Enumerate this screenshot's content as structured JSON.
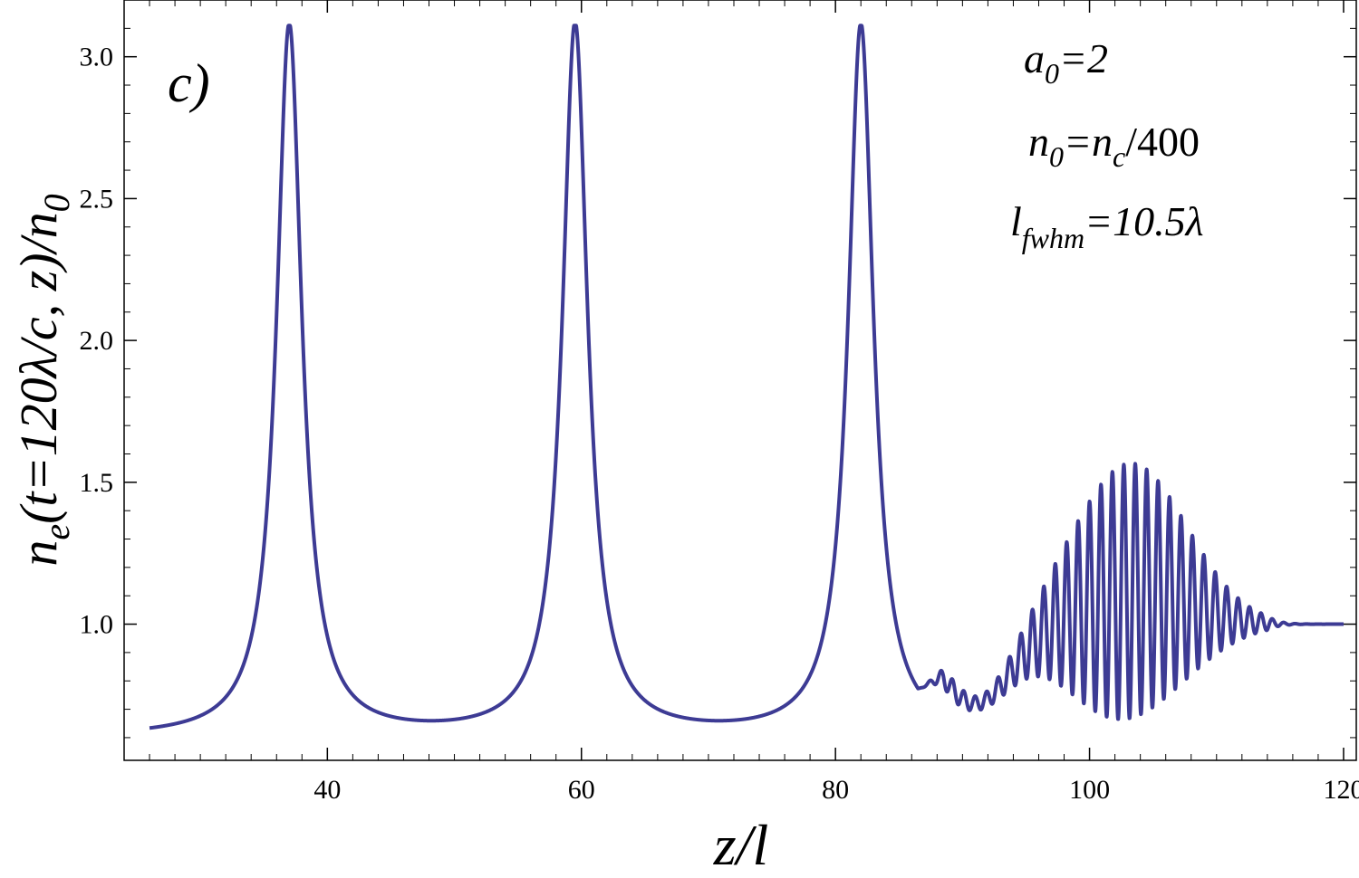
{
  "chart_data": {
    "type": "line",
    "panel_label": "c)",
    "xlabel": {
      "main": "z/l"
    },
    "ylabel": {
      "prefix": "n",
      "prefix_sub": "e",
      "middle": "(t=120λ/c, z)/n",
      "suffix_sub": "0"
    },
    "xlim": [
      24,
      121
    ],
    "ylim": [
      0.52,
      3.2
    ],
    "xticks": [
      40,
      60,
      80,
      100,
      120
    ],
    "xtick_labels": [
      "40",
      "60",
      "80",
      "100",
      "120"
    ],
    "yticks": [
      1.0,
      1.5,
      2.0,
      2.5,
      3.0
    ],
    "ytick_labels": [
      "1.0",
      "1.5",
      "2.0",
      "2.5",
      "3.0"
    ],
    "x_minor_step": 2,
    "y_minor_step": 0.1,
    "annotations": [
      {
        "base": "a",
        "sub": "0",
        "rest": "=2"
      },
      {
        "base": "n",
        "sub": "0",
        "rest": "=n",
        "sub2": "c",
        "rest2": "/400"
      },
      {
        "base": "l",
        "sub": "fwhm",
        "rest": "=10.5λ"
      }
    ],
    "series": [
      {
        "color": "#3d3b94",
        "peaks": [
          {
            "x": 37.0,
            "y": 3.11
          },
          {
            "x": 59.5,
            "y": 3.11
          },
          {
            "x": 82.0,
            "y": 3.11
          }
        ],
        "minimum_y": 0.6,
        "x": [
          26,
          28,
          30,
          32,
          34,
          35,
          36,
          36.5,
          37,
          37.5,
          38,
          39,
          40,
          42,
          44,
          46,
          48,
          50,
          52,
          54,
          56,
          57,
          58,
          59,
          59.5,
          60,
          61,
          62,
          63,
          65,
          67,
          69,
          71,
          73,
          75,
          77,
          79,
          80,
          81,
          81.5,
          82,
          82.5,
          83,
          84,
          85,
          86,
          87,
          88,
          90,
          92,
          94,
          96,
          98,
          100,
          102,
          104,
          105,
          106,
          108,
          110,
          112,
          114,
          116,
          118,
          120
        ],
        "y": [
          0.6,
          0.605,
          0.63,
          0.7,
          0.9,
          1.15,
          1.9,
          2.7,
          3.11,
          2.7,
          1.9,
          1.2,
          0.95,
          0.72,
          0.64,
          0.61,
          0.6,
          0.61,
          0.64,
          0.72,
          0.95,
          1.2,
          1.9,
          2.7,
          3.11,
          2.7,
          1.9,
          1.2,
          0.95,
          0.72,
          0.64,
          0.61,
          0.6,
          0.61,
          0.64,
          0.72,
          0.95,
          1.2,
          1.9,
          2.7,
          3.11,
          2.7,
          1.9,
          1.2,
          0.95,
          0.75,
          0.68,
          0.64,
          0.62,
          0.62,
          0.66,
          0.78,
          0.96,
          1.2,
          1.44,
          1.58,
          1.56,
          1.45,
          1.25,
          1.12,
          1.04,
          1.01,
          1.0,
          1.0,
          1.0
        ]
      }
    ]
  }
}
